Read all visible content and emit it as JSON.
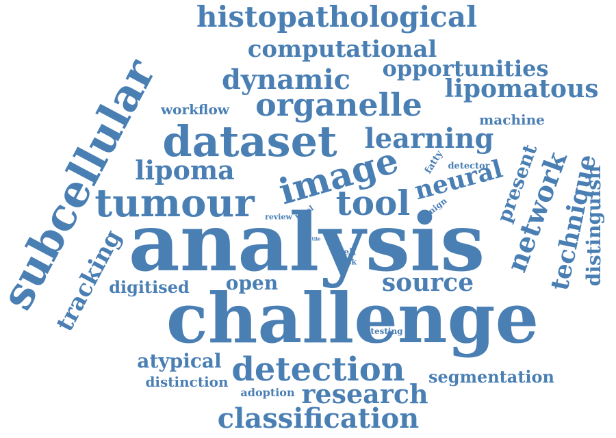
{
  "accent_color": "#4A7FB4",
  "background_color": "#ffffff",
  "words": [
    {
      "id": "analysis",
      "text": "analysis",
      "weight": 100
    },
    {
      "id": "challenge",
      "text": "challenge",
      "weight": 92
    },
    {
      "id": "subcellular",
      "text": "subcellular",
      "weight": 70
    },
    {
      "id": "dataset",
      "text": "dataset",
      "weight": 62
    },
    {
      "id": "image",
      "text": "image",
      "weight": 58
    },
    {
      "id": "tumour",
      "text": "tumour",
      "weight": 56
    },
    {
      "id": "tool",
      "text": "tool",
      "weight": 50
    },
    {
      "id": "detection",
      "text": "detection",
      "weight": 48
    },
    {
      "id": "organelle",
      "text": "organelle",
      "weight": 47
    },
    {
      "id": "histopathological",
      "text": "histopathological",
      "weight": 46
    },
    {
      "id": "network",
      "text": "network",
      "weight": 45
    },
    {
      "id": "classification",
      "text": "classification",
      "weight": 44
    },
    {
      "id": "technique",
      "text": "technique",
      "weight": 40
    },
    {
      "id": "dynamic",
      "text": "dynamic",
      "weight": 40
    },
    {
      "id": "learning",
      "text": "learning",
      "weight": 40
    },
    {
      "id": "tracking",
      "text": "tracking",
      "weight": 38
    },
    {
      "id": "lipomatous",
      "text": "lipomatous",
      "weight": 37
    },
    {
      "id": "research",
      "text": "research",
      "weight": 37
    },
    {
      "id": "neural",
      "text": "neural",
      "weight": 36
    },
    {
      "id": "source",
      "text": "source",
      "weight": 35
    },
    {
      "id": "lipoma",
      "text": "lipoma",
      "weight": 35
    },
    {
      "id": "computational",
      "text": "computational",
      "weight": 34
    },
    {
      "id": "opportunities",
      "text": "opportunities",
      "weight": 33
    },
    {
      "id": "distinguish",
      "text": "distinguish",
      "weight": 30
    },
    {
      "id": "present",
      "text": "present",
      "weight": 28
    },
    {
      "id": "atypical",
      "text": "atypical",
      "weight": 27
    },
    {
      "id": "open",
      "text": "open",
      "weight": 26
    },
    {
      "id": "digitised",
      "text": "digitised",
      "weight": 25
    },
    {
      "id": "segmentation",
      "text": "segmentation",
      "weight": 25
    },
    {
      "id": "machine",
      "text": "machine",
      "weight": 22
    },
    {
      "id": "workflow",
      "text": "workflow",
      "weight": 21
    },
    {
      "id": "distinction",
      "text": "distinction",
      "weight": 20
    },
    {
      "id": "adoption",
      "text": "adoption",
      "weight": 15
    },
    {
      "id": "fatty",
      "text": "fatty",
      "weight": 14
    },
    {
      "id": "detector",
      "text": "detector",
      "weight": 13
    },
    {
      "id": "benign",
      "text": "benign",
      "weight": 13
    },
    {
      "id": "cell",
      "text": "cell",
      "weight": 13
    },
    {
      "id": "testing",
      "text": "testing",
      "weight": 12
    },
    {
      "id": "review",
      "text": "review",
      "weight": 11
    },
    {
      "id": "level",
      "text": "level",
      "weight": 11
    },
    {
      "id": "task",
      "text": "task",
      "weight": 11
    },
    {
      "id": "tile",
      "text": "tile",
      "weight": 5
    }
  ]
}
